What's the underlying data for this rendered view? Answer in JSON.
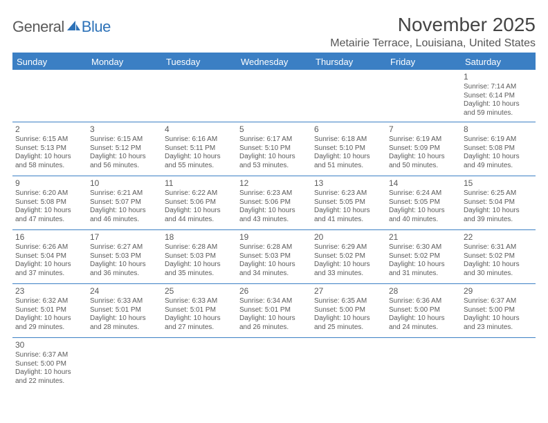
{
  "logo": {
    "general": "General",
    "blue": "Blue"
  },
  "title": "November 2025",
  "location": "Metairie Terrace, Louisiana, United States",
  "columns": [
    "Sunday",
    "Monday",
    "Tuesday",
    "Wednesday",
    "Thursday",
    "Friday",
    "Saturday"
  ],
  "colors": {
    "header_bg": "#3b7fc4",
    "header_text": "#ffffff",
    "border": "#3b7fc4",
    "body_text": "#5a5a5a",
    "logo_blue": "#2d72b8",
    "logo_gray": "#5a5a5a",
    "background": "#ffffff"
  },
  "weeks": [
    [
      null,
      null,
      null,
      null,
      null,
      null,
      {
        "n": "1",
        "sr": "Sunrise: 7:14 AM",
        "ss": "Sunset: 6:14 PM",
        "dl": "Daylight: 10 hours and 59 minutes."
      }
    ],
    [
      {
        "n": "2",
        "sr": "Sunrise: 6:15 AM",
        "ss": "Sunset: 5:13 PM",
        "dl": "Daylight: 10 hours and 58 minutes."
      },
      {
        "n": "3",
        "sr": "Sunrise: 6:15 AM",
        "ss": "Sunset: 5:12 PM",
        "dl": "Daylight: 10 hours and 56 minutes."
      },
      {
        "n": "4",
        "sr": "Sunrise: 6:16 AM",
        "ss": "Sunset: 5:11 PM",
        "dl": "Daylight: 10 hours and 55 minutes."
      },
      {
        "n": "5",
        "sr": "Sunrise: 6:17 AM",
        "ss": "Sunset: 5:10 PM",
        "dl": "Daylight: 10 hours and 53 minutes."
      },
      {
        "n": "6",
        "sr": "Sunrise: 6:18 AM",
        "ss": "Sunset: 5:10 PM",
        "dl": "Daylight: 10 hours and 51 minutes."
      },
      {
        "n": "7",
        "sr": "Sunrise: 6:19 AM",
        "ss": "Sunset: 5:09 PM",
        "dl": "Daylight: 10 hours and 50 minutes."
      },
      {
        "n": "8",
        "sr": "Sunrise: 6:19 AM",
        "ss": "Sunset: 5:08 PM",
        "dl": "Daylight: 10 hours and 49 minutes."
      }
    ],
    [
      {
        "n": "9",
        "sr": "Sunrise: 6:20 AM",
        "ss": "Sunset: 5:08 PM",
        "dl": "Daylight: 10 hours and 47 minutes."
      },
      {
        "n": "10",
        "sr": "Sunrise: 6:21 AM",
        "ss": "Sunset: 5:07 PM",
        "dl": "Daylight: 10 hours and 46 minutes."
      },
      {
        "n": "11",
        "sr": "Sunrise: 6:22 AM",
        "ss": "Sunset: 5:06 PM",
        "dl": "Daylight: 10 hours and 44 minutes."
      },
      {
        "n": "12",
        "sr": "Sunrise: 6:23 AM",
        "ss": "Sunset: 5:06 PM",
        "dl": "Daylight: 10 hours and 43 minutes."
      },
      {
        "n": "13",
        "sr": "Sunrise: 6:23 AM",
        "ss": "Sunset: 5:05 PM",
        "dl": "Daylight: 10 hours and 41 minutes."
      },
      {
        "n": "14",
        "sr": "Sunrise: 6:24 AM",
        "ss": "Sunset: 5:05 PM",
        "dl": "Daylight: 10 hours and 40 minutes."
      },
      {
        "n": "15",
        "sr": "Sunrise: 6:25 AM",
        "ss": "Sunset: 5:04 PM",
        "dl": "Daylight: 10 hours and 39 minutes."
      }
    ],
    [
      {
        "n": "16",
        "sr": "Sunrise: 6:26 AM",
        "ss": "Sunset: 5:04 PM",
        "dl": "Daylight: 10 hours and 37 minutes."
      },
      {
        "n": "17",
        "sr": "Sunrise: 6:27 AM",
        "ss": "Sunset: 5:03 PM",
        "dl": "Daylight: 10 hours and 36 minutes."
      },
      {
        "n": "18",
        "sr": "Sunrise: 6:28 AM",
        "ss": "Sunset: 5:03 PM",
        "dl": "Daylight: 10 hours and 35 minutes."
      },
      {
        "n": "19",
        "sr": "Sunrise: 6:28 AM",
        "ss": "Sunset: 5:03 PM",
        "dl": "Daylight: 10 hours and 34 minutes."
      },
      {
        "n": "20",
        "sr": "Sunrise: 6:29 AM",
        "ss": "Sunset: 5:02 PM",
        "dl": "Daylight: 10 hours and 33 minutes."
      },
      {
        "n": "21",
        "sr": "Sunrise: 6:30 AM",
        "ss": "Sunset: 5:02 PM",
        "dl": "Daylight: 10 hours and 31 minutes."
      },
      {
        "n": "22",
        "sr": "Sunrise: 6:31 AM",
        "ss": "Sunset: 5:02 PM",
        "dl": "Daylight: 10 hours and 30 minutes."
      }
    ],
    [
      {
        "n": "23",
        "sr": "Sunrise: 6:32 AM",
        "ss": "Sunset: 5:01 PM",
        "dl": "Daylight: 10 hours and 29 minutes."
      },
      {
        "n": "24",
        "sr": "Sunrise: 6:33 AM",
        "ss": "Sunset: 5:01 PM",
        "dl": "Daylight: 10 hours and 28 minutes."
      },
      {
        "n": "25",
        "sr": "Sunrise: 6:33 AM",
        "ss": "Sunset: 5:01 PM",
        "dl": "Daylight: 10 hours and 27 minutes."
      },
      {
        "n": "26",
        "sr": "Sunrise: 6:34 AM",
        "ss": "Sunset: 5:01 PM",
        "dl": "Daylight: 10 hours and 26 minutes."
      },
      {
        "n": "27",
        "sr": "Sunrise: 6:35 AM",
        "ss": "Sunset: 5:00 PM",
        "dl": "Daylight: 10 hours and 25 minutes."
      },
      {
        "n": "28",
        "sr": "Sunrise: 6:36 AM",
        "ss": "Sunset: 5:00 PM",
        "dl": "Daylight: 10 hours and 24 minutes."
      },
      {
        "n": "29",
        "sr": "Sunrise: 6:37 AM",
        "ss": "Sunset: 5:00 PM",
        "dl": "Daylight: 10 hours and 23 minutes."
      }
    ],
    [
      {
        "n": "30",
        "sr": "Sunrise: 6:37 AM",
        "ss": "Sunset: 5:00 PM",
        "dl": "Daylight: 10 hours and 22 minutes."
      },
      null,
      null,
      null,
      null,
      null,
      null
    ]
  ]
}
